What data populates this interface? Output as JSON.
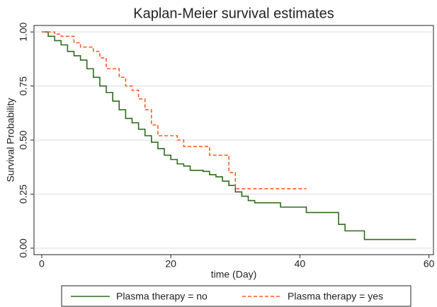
{
  "chart_data": {
    "type": "step",
    "title": "Kaplan-Meier survival estimates",
    "x_label": "time (Day)",
    "y_label": "Survival Probability",
    "xlim": [
      -1.2,
      60.7
    ],
    "ylim": [
      -0.03,
      1.03
    ],
    "xticks": [
      0,
      20,
      40,
      60
    ],
    "yticks": [
      {
        "value": 0,
        "label": "0.00"
      },
      {
        "value": 0.25,
        "label": "0.25"
      },
      {
        "value": 0.5,
        "label": "0.50"
      },
      {
        "value": 0.75,
        "label": "0.75"
      },
      {
        "value": 1,
        "label": "1.00"
      }
    ],
    "grid": true,
    "legend": "bottom",
    "series": [
      {
        "name": "Plasma therapy = no",
        "color": "#2e6b1f",
        "dash": "solid",
        "x": [
          0,
          1,
          2,
          3,
          4,
          5,
          6,
          7,
          8,
          9,
          10,
          11,
          12,
          13,
          14,
          15,
          16,
          17,
          18,
          19,
          20,
          21,
          22,
          23,
          25,
          26,
          27,
          28,
          29,
          30,
          31,
          32,
          33,
          37,
          41,
          46,
          47,
          50,
          58
        ],
        "values": [
          1.0,
          0.98,
          0.96,
          0.94,
          0.91,
          0.89,
          0.87,
          0.83,
          0.79,
          0.75,
          0.72,
          0.68,
          0.64,
          0.6,
          0.58,
          0.55,
          0.52,
          0.49,
          0.46,
          0.43,
          0.41,
          0.39,
          0.38,
          0.36,
          0.355,
          0.34,
          0.33,
          0.31,
          0.29,
          0.26,
          0.24,
          0.22,
          0.21,
          0.19,
          0.165,
          0.11,
          0.08,
          0.04,
          0.04
        ]
      },
      {
        "name": "Plasma therapy = yes",
        "color": "#ff5a2a",
        "dash": "dashed",
        "x": [
          0,
          2,
          3,
          5,
          6,
          8,
          9,
          10,
          12,
          13,
          14,
          15,
          16,
          17,
          18,
          21,
          22,
          26,
          29,
          30,
          41
        ],
        "values": [
          1.0,
          0.99,
          0.98,
          0.95,
          0.93,
          0.91,
          0.88,
          0.83,
          0.79,
          0.75,
          0.73,
          0.69,
          0.64,
          0.57,
          0.52,
          0.5,
          0.47,
          0.43,
          0.35,
          0.275,
          0.275
        ]
      }
    ]
  }
}
